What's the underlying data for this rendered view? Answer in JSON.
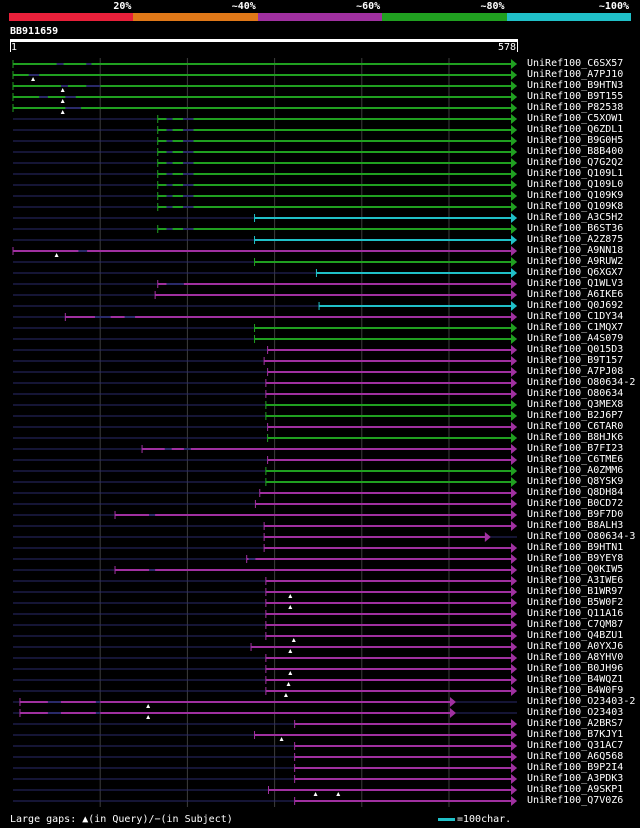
{
  "legend": [
    {
      "label": "20%",
      "color": "#e8203a"
    },
    {
      "label": "~40%",
      "color": "#e07818"
    },
    {
      "label": "~60%",
      "color": "#a030a0"
    },
    {
      "label": "~80%",
      "color": "#20a020"
    },
    {
      "label": "~100%",
      "color": "#20c0c8"
    }
  ],
  "query": {
    "name": "BB911659",
    "start": "1",
    "end": "578",
    "length": 578
  },
  "colors": {
    "green": "#20a020",
    "magenta": "#a030a0",
    "cyan": "#20c0c8",
    "dark": "#2a2a6a",
    "grid": "#3c3c3c"
  },
  "hits": [
    {
      "label": "UniRef100_C6SX57",
      "start": 0,
      "end": 578,
      "color": "green",
      "arrow": true,
      "tri": [],
      "darks": [
        [
          50,
          58
        ],
        [
          84,
          90
        ]
      ]
    },
    {
      "label": "UniRef100_A7PJ10",
      "start": 0,
      "end": 578,
      "color": "green",
      "arrow": true,
      "tri": [
        23
      ],
      "darks": [
        [
          18,
          30
        ]
      ]
    },
    {
      "label": "UniRef100_B9HTN3",
      "start": 0,
      "end": 578,
      "color": "green",
      "arrow": true,
      "tri": [
        57
      ],
      "darks": [
        [
          55,
          63
        ],
        [
          84,
          100
        ]
      ]
    },
    {
      "label": "UniRef100_B9T155",
      "start": 0,
      "end": 578,
      "color": "green",
      "arrow": true,
      "tri": [
        57
      ],
      "darks": [
        [
          30,
          40
        ],
        [
          60,
          72
        ]
      ]
    },
    {
      "label": "UniRef100_P82538",
      "start": 0,
      "end": 578,
      "color": "green",
      "arrow": true,
      "tri": [
        57
      ],
      "darks": [
        [
          60,
          78
        ]
      ]
    },
    {
      "label": "UniRef100_C5XOW1",
      "start": 166,
      "end": 578,
      "color": "green",
      "arrow": true,
      "tri": [],
      "darks": [
        [
          176,
          183
        ],
        [
          195,
          207
        ]
      ]
    },
    {
      "label": "UniRef100_Q6ZDL1",
      "start": 166,
      "end": 578,
      "color": "green",
      "arrow": true,
      "tri": [],
      "darks": [
        [
          176,
          183
        ],
        [
          195,
          207
        ]
      ]
    },
    {
      "label": "UniRef100_B9G0H5",
      "start": 166,
      "end": 578,
      "color": "green",
      "arrow": true,
      "tri": [],
      "darks": [
        [
          176,
          183
        ],
        [
          195,
          207
        ]
      ]
    },
    {
      "label": "UniRef100_B8B400",
      "start": 166,
      "end": 578,
      "color": "green",
      "arrow": true,
      "tri": [],
      "darks": [
        [
          176,
          183
        ],
        [
          195,
          207
        ]
      ]
    },
    {
      "label": "UniRef100_Q7G2Q2",
      "start": 166,
      "end": 578,
      "color": "green",
      "arrow": true,
      "tri": [],
      "darks": [
        [
          176,
          183
        ],
        [
          195,
          207
        ]
      ]
    },
    {
      "label": "UniRef100_Q109L1",
      "start": 166,
      "end": 578,
      "color": "green",
      "arrow": true,
      "tri": [],
      "darks": [
        [
          176,
          183
        ],
        [
          195,
          207
        ]
      ]
    },
    {
      "label": "UniRef100_Q109L0",
      "start": 166,
      "end": 578,
      "color": "green",
      "arrow": true,
      "tri": [],
      "darks": [
        [
          176,
          183
        ],
        [
          195,
          207
        ]
      ]
    },
    {
      "label": "UniRef100_Q109K9",
      "start": 166,
      "end": 578,
      "color": "green",
      "arrow": true,
      "tri": [],
      "darks": [
        [
          176,
          183
        ],
        [
          195,
          207
        ]
      ]
    },
    {
      "label": "UniRef100_Q109K8",
      "start": 166,
      "end": 578,
      "color": "green",
      "arrow": true,
      "tri": [],
      "darks": [
        [
          176,
          183
        ],
        [
          195,
          207
        ]
      ]
    },
    {
      "label": "UniRef100_A3C5H2",
      "start": 277,
      "end": 578,
      "color": "cyan",
      "arrow": true,
      "tri": [],
      "darks": []
    },
    {
      "label": "UniRef100_B6ST36",
      "start": 166,
      "end": 578,
      "color": "green",
      "arrow": true,
      "tri": [],
      "darks": [
        [
          176,
          183
        ],
        [
          195,
          207
        ]
      ]
    },
    {
      "label": "UniRef100_A2Z875",
      "start": 277,
      "end": 578,
      "color": "cyan",
      "arrow": true,
      "tri": [],
      "darks": []
    },
    {
      "label": "UniRef100_A9NN18",
      "start": 0,
      "end": 578,
      "color": "magenta",
      "arrow": true,
      "tri": [
        50
      ],
      "darks": [
        [
          75,
          85
        ]
      ]
    },
    {
      "label": "UniRef100_A9RUW2",
      "start": 277,
      "end": 578,
      "color": "green",
      "arrow": true,
      "tri": [],
      "darks": []
    },
    {
      "label": "UniRef100_Q6XGX7",
      "start": 348,
      "end": 578,
      "color": "cyan",
      "arrow": true,
      "tri": [],
      "darks": []
    },
    {
      "label": "UniRef100_Q1WLV3",
      "start": 166,
      "end": 578,
      "color": "magenta",
      "arrow": true,
      "tri": [],
      "darks": [
        [
          176,
          196
        ]
      ]
    },
    {
      "label": "UniRef100_A6IKE6",
      "start": 163,
      "end": 578,
      "color": "magenta",
      "arrow": true,
      "tri": [],
      "darks": []
    },
    {
      "label": "UniRef100_Q0J692",
      "start": 351,
      "end": 578,
      "color": "cyan",
      "arrow": true,
      "tri": [],
      "darks": []
    },
    {
      "label": "UniRef100_C1DY34",
      "start": 60,
      "end": 578,
      "color": "magenta",
      "arrow": true,
      "tri": [],
      "darks": [
        [
          94,
          112
        ],
        [
          128,
          140
        ]
      ]
    },
    {
      "label": "UniRef100_C1MQX7",
      "start": 277,
      "end": 578,
      "color": "green",
      "arrow": true,
      "tri": [],
      "darks": []
    },
    {
      "label": "UniRef100_A4S079",
      "start": 277,
      "end": 578,
      "color": "green",
      "arrow": true,
      "tri": [],
      "darks": []
    },
    {
      "label": "UniRef100_Q015D3",
      "start": 292,
      "end": 578,
      "color": "magenta",
      "arrow": true,
      "tri": [],
      "darks": []
    },
    {
      "label": "UniRef100_B9T157",
      "start": 288,
      "end": 578,
      "color": "magenta",
      "arrow": true,
      "tri": [],
      "darks": []
    },
    {
      "label": "UniRef100_A7PJ08",
      "start": 292,
      "end": 578,
      "color": "magenta",
      "arrow": true,
      "tri": [],
      "darks": []
    },
    {
      "label": "UniRef100_O80634-2",
      "start": 290,
      "end": 578,
      "color": "magenta",
      "arrow": true,
      "tri": [],
      "darks": []
    },
    {
      "label": "UniRef100_O80634",
      "start": 290,
      "end": 578,
      "color": "magenta",
      "arrow": true,
      "tri": [],
      "darks": []
    },
    {
      "label": "UniRef100_Q3MEX8",
      "start": 290,
      "end": 578,
      "color": "green",
      "arrow": true,
      "tri": [],
      "darks": []
    },
    {
      "label": "UniRef100_B2J6P7",
      "start": 290,
      "end": 578,
      "color": "green",
      "arrow": true,
      "tri": [],
      "darks": []
    },
    {
      "label": "UniRef100_C6TAR0",
      "start": 292,
      "end": 578,
      "color": "magenta",
      "arrow": true,
      "tri": [],
      "darks": []
    },
    {
      "label": "UniRef100_B8HJK6",
      "start": 292,
      "end": 578,
      "color": "green",
      "arrow": true,
      "tri": [],
      "darks": []
    },
    {
      "label": "UniRef100_B7FI23",
      "start": 148,
      "end": 578,
      "color": "magenta",
      "arrow": true,
      "tri": [],
      "darks": [
        [
          174,
          182
        ],
        [
          196,
          204
        ]
      ]
    },
    {
      "label": "UniRef100_C6TME6",
      "start": 292,
      "end": 578,
      "color": "magenta",
      "arrow": true,
      "tri": [],
      "darks": []
    },
    {
      "label": "UniRef100_A0ZMM6",
      "start": 290,
      "end": 578,
      "color": "green",
      "arrow": true,
      "tri": [],
      "darks": []
    },
    {
      "label": "UniRef100_Q8YSK9",
      "start": 290,
      "end": 578,
      "color": "green",
      "arrow": true,
      "tri": [],
      "darks": []
    },
    {
      "label": "UniRef100_Q8DH84",
      "start": 283,
      "end": 578,
      "color": "magenta",
      "arrow": true,
      "tri": [],
      "darks": []
    },
    {
      "label": "UniRef100_B0CD72",
      "start": 278,
      "end": 578,
      "color": "magenta",
      "arrow": true,
      "tri": [],
      "darks": []
    },
    {
      "label": "UniRef100_B9F7D0",
      "start": 117,
      "end": 578,
      "color": "magenta",
      "arrow": true,
      "tri": [],
      "darks": [
        [
          156,
          163
        ]
      ]
    },
    {
      "label": "UniRef100_B8ALH3",
      "start": 288,
      "end": 578,
      "color": "magenta",
      "arrow": true,
      "tri": [],
      "darks": []
    },
    {
      "label": "UniRef100_O80634-3",
      "start": 288,
      "end": 548,
      "color": "magenta",
      "arrow": true,
      "tri": [],
      "darks": []
    },
    {
      "label": "UniRef100_B9HTN1",
      "start": 288,
      "end": 578,
      "color": "magenta",
      "arrow": true,
      "tri": [],
      "darks": []
    },
    {
      "label": "UniRef100_B9YEY8",
      "start": 268,
      "end": 578,
      "color": "magenta",
      "arrow": true,
      "tri": [],
      "darks": [
        [
          270,
          278
        ]
      ]
    },
    {
      "label": "UniRef100_Q0KIW5",
      "start": 117,
      "end": 578,
      "color": "magenta",
      "arrow": true,
      "tri": [],
      "darks": [
        [
          156,
          163
        ]
      ]
    },
    {
      "label": "UniRef100_A3IWE6",
      "start": 290,
      "end": 578,
      "color": "magenta",
      "arrow": true,
      "tri": [],
      "darks": []
    },
    {
      "label": "UniRef100_B1WR97",
      "start": 290,
      "end": 578,
      "color": "magenta",
      "arrow": true,
      "tri": [
        318
      ],
      "darks": []
    },
    {
      "label": "UniRef100_B5W0F2",
      "start": 290,
      "end": 578,
      "color": "magenta",
      "arrow": true,
      "tri": [
        318
      ],
      "darks": []
    },
    {
      "label": "UniRef100_Q11A16",
      "start": 290,
      "end": 578,
      "color": "magenta",
      "arrow": true,
      "tri": [],
      "darks": []
    },
    {
      "label": "UniRef100_C7QM87",
      "start": 290,
      "end": 578,
      "color": "magenta",
      "arrow": true,
      "tri": [],
      "darks": []
    },
    {
      "label": "UniRef100_Q4BZU1",
      "start": 290,
      "end": 578,
      "color": "magenta",
      "arrow": true,
      "tri": [
        322
      ],
      "darks": []
    },
    {
      "label": "UniRef100_A0YXJ6",
      "start": 273,
      "end": 578,
      "color": "magenta",
      "arrow": true,
      "tri": [
        318
      ],
      "darks": []
    },
    {
      "label": "UniRef100_A8YHV0",
      "start": 290,
      "end": 578,
      "color": "magenta",
      "arrow": true,
      "tri": [],
      "darks": []
    },
    {
      "label": "UniRef100_B0JH96",
      "start": 290,
      "end": 578,
      "color": "magenta",
      "arrow": true,
      "tri": [
        318
      ],
      "darks": []
    },
    {
      "label": "UniRef100_B4WQZ1",
      "start": 290,
      "end": 578,
      "color": "magenta",
      "arrow": true,
      "tri": [
        316
      ],
      "darks": []
    },
    {
      "label": "UniRef100_B4W0F9",
      "start": 290,
      "end": 578,
      "color": "magenta",
      "arrow": true,
      "tri": [
        313
      ],
      "darks": []
    },
    {
      "label": "UniRef100_O23403-2",
      "start": 8,
      "end": 508,
      "color": "magenta",
      "arrow": true,
      "tri": [
        155
      ],
      "darks": [
        [
          40,
          55
        ],
        [
          95,
          100
        ]
      ]
    },
    {
      "label": "UniRef100_O23403",
      "start": 8,
      "end": 508,
      "color": "magenta",
      "arrow": true,
      "tri": [
        155
      ],
      "darks": [
        [
          40,
          55
        ],
        [
          95,
          100
        ]
      ]
    },
    {
      "label": "UniRef100_A2BRS7",
      "start": 323,
      "end": 578,
      "color": "magenta",
      "arrow": true,
      "tri": [],
      "darks": []
    },
    {
      "label": "UniRef100_B7KJY1",
      "start": 277,
      "end": 578,
      "color": "magenta",
      "arrow": true,
      "tri": [
        308
      ],
      "darks": []
    },
    {
      "label": "UniRef100_Q31AC7",
      "start": 323,
      "end": 578,
      "color": "magenta",
      "arrow": true,
      "tri": [],
      "darks": []
    },
    {
      "label": "UniRef100_A6Q568",
      "start": 323,
      "end": 578,
      "color": "magenta",
      "arrow": true,
      "tri": [],
      "darks": []
    },
    {
      "label": "UniRef100_B9P2I4",
      "start": 323,
      "end": 578,
      "color": "magenta",
      "arrow": true,
      "tri": [],
      "darks": []
    },
    {
      "label": "UniRef100_A3PDK3",
      "start": 323,
      "end": 578,
      "color": "magenta",
      "arrow": true,
      "tri": [],
      "darks": []
    },
    {
      "label": "UniRef100_A9SKP1",
      "start": 293,
      "end": 578,
      "color": "magenta",
      "arrow": true,
      "tri": [
        347,
        373
      ],
      "darks": []
    },
    {
      "label": "UniRef100_Q7V0Z6",
      "start": 323,
      "end": 578,
      "color": "magenta",
      "arrow": true,
      "tri": [],
      "darks": []
    }
  ],
  "footer": {
    "text": "Large gaps: ▲(in Query)/−(in Subject)",
    "scale": "=100char."
  }
}
